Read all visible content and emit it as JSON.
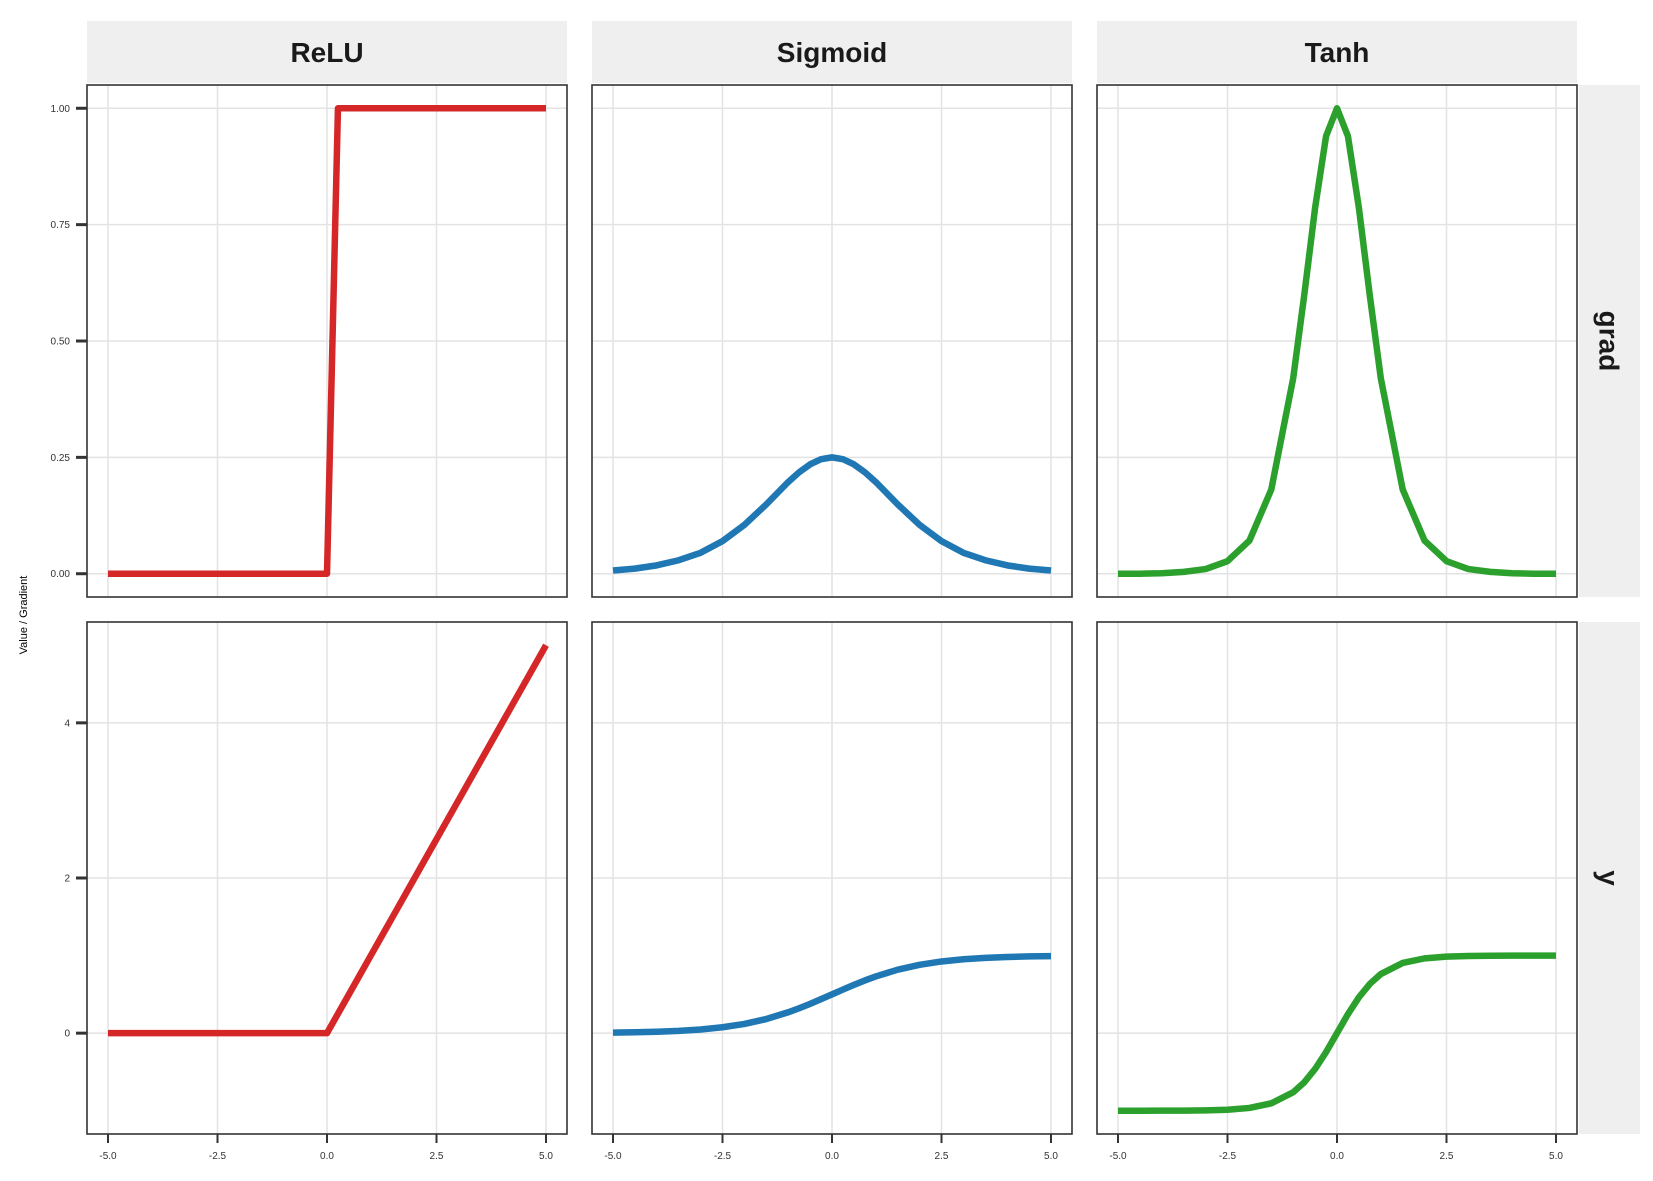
{
  "chart_data": {
    "type": "line",
    "facet_columns": [
      "ReLU",
      "Sigmoid",
      "Tanh"
    ],
    "facet_rows": [
      "grad",
      "y"
    ],
    "ylabel": "Value / Gradient",
    "xlabel": "",
    "x_range": [
      -5,
      5
    ],
    "x_ticks": [
      -5.0,
      -2.5,
      0.0,
      2.5,
      5.0
    ],
    "x_tick_labels": [
      "-5.0",
      "-2.5",
      "0.0",
      "2.5",
      "5.0"
    ],
    "y_scales": {
      "grad": {
        "ylim": [
          -0.05,
          1.05
        ],
        "ticks": [
          0,
          0.25,
          0.5,
          0.75,
          1.0
        ],
        "tick_labels": [
          "0.00",
          "0.25",
          "0.50",
          "0.75",
          "1.00"
        ]
      },
      "y": {
        "ylim": [
          -1.3,
          5.3
        ],
        "ticks": [
          0,
          2,
          4
        ],
        "tick_labels": [
          "0",
          "2",
          "4"
        ]
      }
    },
    "colors": {
      "ReLU": "#d62728",
      "Sigmoid": "#1f77b4",
      "Tanh": "#2ca02c"
    },
    "grid": true,
    "legend": "none",
    "x": [
      -5.0,
      -4.5,
      -4.0,
      -3.5,
      -3.0,
      -2.5,
      -2.0,
      -1.5,
      -1.0,
      -0.75,
      -0.5,
      -0.25,
      0.0,
      0.25,
      0.5,
      0.75,
      1.0,
      1.5,
      2.0,
      2.5,
      3.0,
      3.5,
      4.0,
      4.5,
      5.0
    ],
    "series": [
      {
        "name": "ReLU",
        "row": "y",
        "values": [
          0,
          0,
          0,
          0,
          0,
          0,
          0,
          0,
          0,
          0,
          0,
          0,
          0,
          0.25,
          0.5,
          0.75,
          1.0,
          1.5,
          2.0,
          2.5,
          3.0,
          3.5,
          4.0,
          4.5,
          5.0
        ]
      },
      {
        "name": "ReLU",
        "row": "grad",
        "values": [
          0,
          0,
          0,
          0,
          0,
          0,
          0,
          0,
          0,
          0,
          0,
          0,
          0,
          1,
          1,
          1,
          1,
          1,
          1,
          1,
          1,
          1,
          1,
          1,
          1
        ]
      },
      {
        "name": "Sigmoid",
        "row": "y",
        "values": [
          0.007,
          0.011,
          0.018,
          0.029,
          0.047,
          0.076,
          0.119,
          0.182,
          0.269,
          0.321,
          0.378,
          0.438,
          0.5,
          0.562,
          0.622,
          0.679,
          0.731,
          0.818,
          0.881,
          0.924,
          0.953,
          0.971,
          0.982,
          0.989,
          0.993
        ]
      },
      {
        "name": "Sigmoid",
        "row": "grad",
        "values": [
          0.007,
          0.011,
          0.018,
          0.029,
          0.045,
          0.07,
          0.105,
          0.149,
          0.197,
          0.218,
          0.235,
          0.246,
          0.25,
          0.246,
          0.235,
          0.218,
          0.197,
          0.149,
          0.105,
          0.07,
          0.045,
          0.029,
          0.018,
          0.011,
          0.007
        ]
      },
      {
        "name": "Tanh",
        "row": "y",
        "values": [
          -1.0,
          -1.0,
          -0.999,
          -0.998,
          -0.995,
          -0.987,
          -0.964,
          -0.905,
          -0.762,
          -0.635,
          -0.462,
          -0.245,
          0.0,
          0.245,
          0.462,
          0.635,
          0.762,
          0.905,
          0.964,
          0.987,
          0.995,
          0.998,
          0.999,
          1.0,
          1.0
        ]
      },
      {
        "name": "Tanh",
        "row": "grad",
        "values": [
          0.0,
          0.0,
          0.001,
          0.004,
          0.01,
          0.027,
          0.071,
          0.181,
          0.42,
          0.597,
          0.786,
          0.94,
          1.0,
          0.94,
          0.786,
          0.597,
          0.42,
          0.181,
          0.071,
          0.027,
          0.01,
          0.004,
          0.001,
          0.0,
          0.0
        ]
      }
    ]
  }
}
